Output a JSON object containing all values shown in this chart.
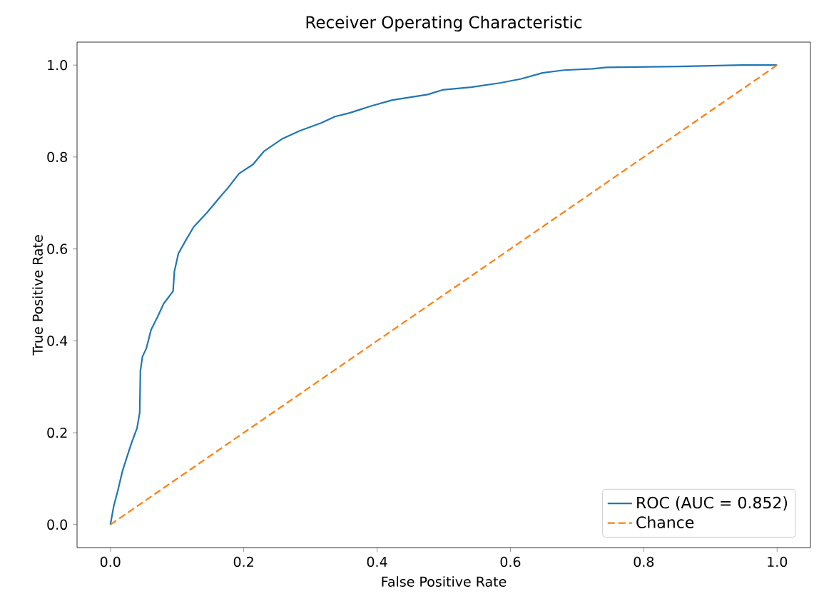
{
  "chart_data": {
    "type": "line",
    "title": "Receiver Operating Characteristic",
    "xlabel": "False Positive Rate",
    "ylabel": "True Positive Rate",
    "xlim": [
      -0.05,
      1.05
    ],
    "ylim": [
      -0.05,
      1.05
    ],
    "xticks": [
      {
        "value": 0,
        "label": "0.0"
      },
      {
        "value": 0.2,
        "label": "0.2"
      },
      {
        "value": 0.4,
        "label": "0.4"
      },
      {
        "value": 0.6,
        "label": "0.6"
      },
      {
        "value": 0.8,
        "label": "0.8"
      },
      {
        "value": 1,
        "label": "1.0"
      }
    ],
    "yticks": [
      {
        "value": 0,
        "label": "0.0"
      },
      {
        "value": 0.2,
        "label": "0.2"
      },
      {
        "value": 0.4,
        "label": "0.4"
      },
      {
        "value": 0.6,
        "label": "0.6"
      },
      {
        "value": 0.8,
        "label": "0.8"
      },
      {
        "value": 1,
        "label": "1.0"
      }
    ],
    "grid": false,
    "legend": "bottom right",
    "marker": "none",
    "series": [
      {
        "name": "ROC (AUC = 0.852)",
        "color": "#1f77b4",
        "line_style": "solid",
        "x": [
          0,
          0.005,
          0.011,
          0.018,
          0.025,
          0.032,
          0.04,
          0.044,
          0.045,
          0.048,
          0.054,
          0.061,
          0.07,
          0.08,
          0.094,
          0.096,
          0.102,
          0.112,
          0.125,
          0.145,
          0.161,
          0.177,
          0.193,
          0.214,
          0.23,
          0.257,
          0.284,
          0.316,
          0.337,
          0.359,
          0.391,
          0.423,
          0.476,
          0.498,
          0.541,
          0.584,
          0.616,
          0.648,
          0.68,
          0.723,
          0.744,
          0.851,
          0.948,
          1
        ],
        "values": [
          0,
          0.04,
          0.073,
          0.116,
          0.148,
          0.179,
          0.21,
          0.244,
          0.334,
          0.365,
          0.384,
          0.424,
          0.45,
          0.481,
          0.508,
          0.551,
          0.59,
          0.616,
          0.648,
          0.679,
          0.707,
          0.734,
          0.764,
          0.784,
          0.812,
          0.839,
          0.857,
          0.874,
          0.888,
          0.896,
          0.911,
          0.924,
          0.936,
          0.946,
          0.952,
          0.961,
          0.97,
          0.983,
          0.989,
          0.992,
          0.995,
          0.997,
          1,
          1
        ]
      },
      {
        "name": "Chance",
        "color": "#ff7f0e",
        "line_style": "dashed",
        "x": [
          0,
          1
        ],
        "values": [
          0,
          1
        ]
      }
    ]
  }
}
